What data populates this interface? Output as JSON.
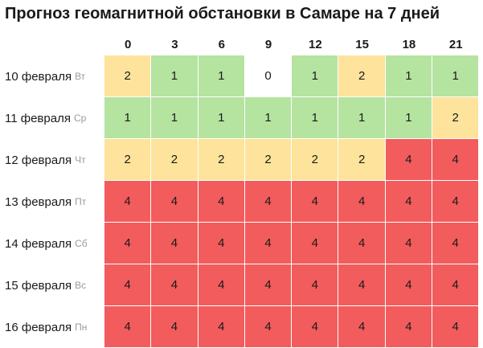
{
  "title": "Прогноз геомагнитной обстановки в Самаре на 7 дней",
  "hours": [
    "0",
    "3",
    "6",
    "9",
    "12",
    "15",
    "18",
    "21"
  ],
  "level_colors": {
    "0": "#ffffff",
    "1": "#b5e3a0",
    "2": "#fde39b",
    "4": "#f25c5c"
  },
  "days": [
    {
      "date": "10 февраля",
      "dow": "Вт",
      "values": [
        "2",
        "1",
        "1",
        "0",
        "1",
        "2",
        "1",
        "1"
      ]
    },
    {
      "date": "11 февраля",
      "dow": "Ср",
      "values": [
        "1",
        "1",
        "1",
        "1",
        "1",
        "1",
        "1",
        "2"
      ]
    },
    {
      "date": "12 февраля",
      "dow": "Чт",
      "values": [
        "2",
        "2",
        "2",
        "2",
        "2",
        "2",
        "4",
        "4"
      ]
    },
    {
      "date": "13 февраля",
      "dow": "Пт",
      "values": [
        "4",
        "4",
        "4",
        "4",
        "4",
        "4",
        "4",
        "4"
      ]
    },
    {
      "date": "14 февраля",
      "dow": "Сб",
      "values": [
        "4",
        "4",
        "4",
        "4",
        "4",
        "4",
        "4",
        "4"
      ]
    },
    {
      "date": "15 февраля",
      "dow": "Вс",
      "values": [
        "4",
        "4",
        "4",
        "4",
        "4",
        "4",
        "4",
        "4"
      ]
    },
    {
      "date": "16 февраля",
      "dow": "Пн",
      "values": [
        "4",
        "4",
        "4",
        "4",
        "4",
        "4",
        "4",
        "4"
      ]
    }
  ]
}
